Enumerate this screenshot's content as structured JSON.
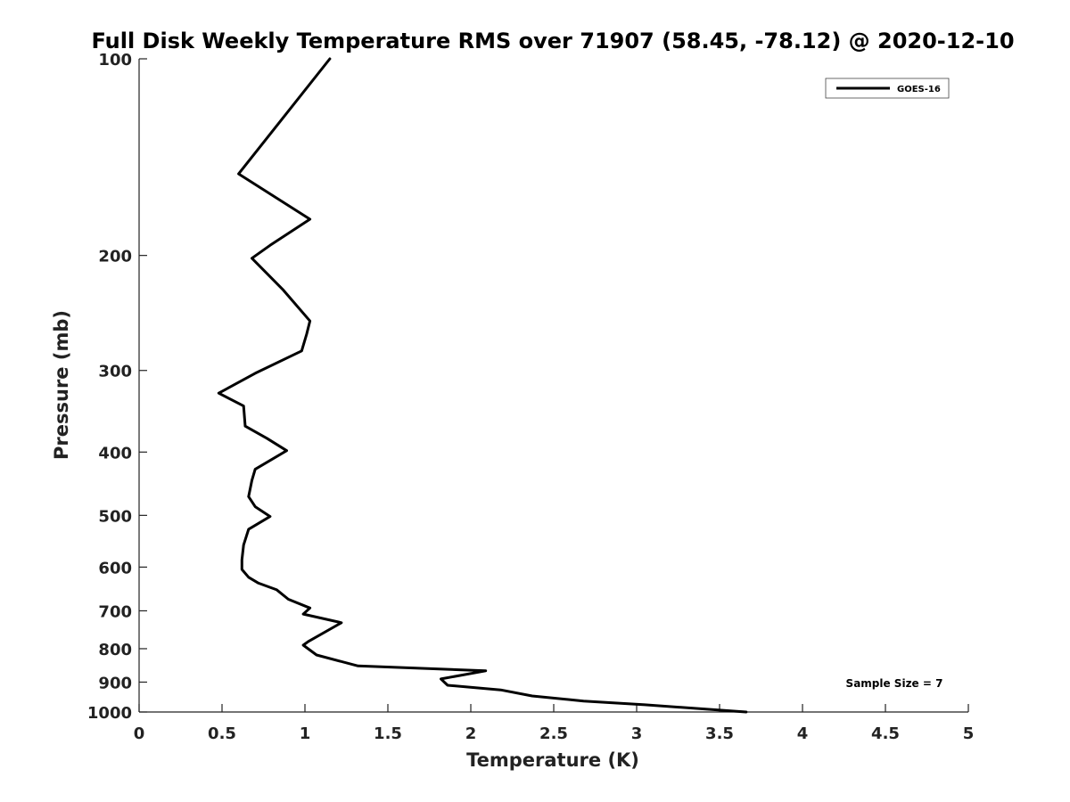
{
  "chart_data": {
    "type": "line",
    "title": "Full Disk Weekly Temperature RMS over 71907 (58.45, -78.12) @ 2020-12-10",
    "xlabel": "Temperature (K)",
    "ylabel": "Pressure (mb)",
    "xlim": [
      0,
      5
    ],
    "ylim": [
      100,
      1000
    ],
    "y_scale": "log",
    "y_reversed": true,
    "grid": false,
    "x_ticks": [
      "0",
      "0.5",
      "1",
      "1.5",
      "2",
      "2.5",
      "3",
      "3.5",
      "4",
      "4.5",
      "5"
    ],
    "y_ticks": [
      "100",
      "200",
      "300",
      "400",
      "500",
      "600",
      "700",
      "800",
      "900",
      "1000"
    ],
    "legend": {
      "position": "top-right",
      "entries": [
        "GOES-16"
      ]
    },
    "annotation": "Sample Size = 7",
    "series": [
      {
        "name": "GOES-16",
        "color": "#000000",
        "points": [
          [
            1.15,
            100
          ],
          [
            0.6,
            150
          ],
          [
            1.03,
            176
          ],
          [
            0.79,
            193
          ],
          [
            0.68,
            202
          ],
          [
            0.87,
            226
          ],
          [
            1.03,
            252
          ],
          [
            1.01,
            264
          ],
          [
            0.98,
            280
          ],
          [
            0.7,
            303
          ],
          [
            0.48,
            325
          ],
          [
            0.63,
            340
          ],
          [
            0.64,
            365
          ],
          [
            0.77,
            381
          ],
          [
            0.89,
            398
          ],
          [
            0.7,
            425
          ],
          [
            0.68,
            442
          ],
          [
            0.66,
            468
          ],
          [
            0.7,
            485
          ],
          [
            0.79,
            502
          ],
          [
            0.66,
            525
          ],
          [
            0.63,
            555
          ],
          [
            0.62,
            585
          ],
          [
            0.62,
            605
          ],
          [
            0.66,
            622
          ],
          [
            0.72,
            635
          ],
          [
            0.83,
            650
          ],
          [
            0.9,
            672
          ],
          [
            1.03,
            693
          ],
          [
            0.99,
            708
          ],
          [
            1.22,
            730
          ],
          [
            1.02,
            780
          ],
          [
            0.99,
            790
          ],
          [
            1.07,
            818
          ],
          [
            1.32,
            850
          ],
          [
            2.09,
            865
          ],
          [
            1.82,
            890
          ],
          [
            1.86,
            910
          ],
          [
            2.18,
            925
          ],
          [
            2.37,
            945
          ],
          [
            2.68,
            962
          ],
          [
            3.05,
            975
          ],
          [
            3.66,
            1000
          ]
        ]
      }
    ]
  }
}
